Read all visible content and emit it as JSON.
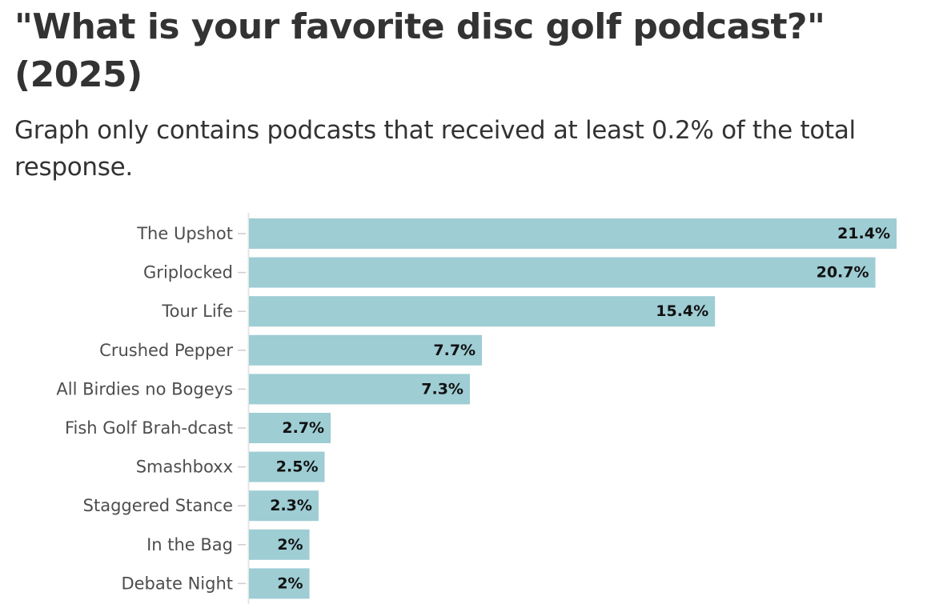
{
  "title": "\"What is your favorite disc golf podcast?\" (2025)",
  "subtitle": "Graph only contains podcasts that received at least 0.2% of the total response.",
  "colors": {
    "bar": "#9ecdd4",
    "label_halo": "#9ecdd4",
    "axis_line": "#e6e6e6",
    "tick": "#cccccc"
  },
  "chart_data": {
    "type": "bar",
    "orientation": "horizontal",
    "title": "\"What is your favorite disc golf podcast?\" (2025)",
    "subtitle": "Graph only contains podcasts that received at least 0.2% of the total response.",
    "xlabel": "",
    "ylabel": "",
    "xlim": [
      0,
      21.4
    ],
    "grid": false,
    "legend": "none",
    "categories": [
      "The Upshot",
      "Griplocked",
      "Tour Life",
      "Crushed Pepper",
      "All Birdies no Bogeys",
      "Fish Golf Brah-dcast",
      "Smashboxx",
      "Staggered Stance",
      "In the Bag",
      "Debate Night"
    ],
    "values": [
      21.4,
      20.7,
      15.4,
      7.7,
      7.3,
      2.7,
      2.5,
      2.3,
      2.0,
      2.0
    ],
    "value_labels": [
      "21.4%",
      "20.7%",
      "15.4%",
      "7.7%",
      "7.3%",
      "2.7%",
      "2.5%",
      "2.3%",
      "2%",
      "2%"
    ]
  }
}
